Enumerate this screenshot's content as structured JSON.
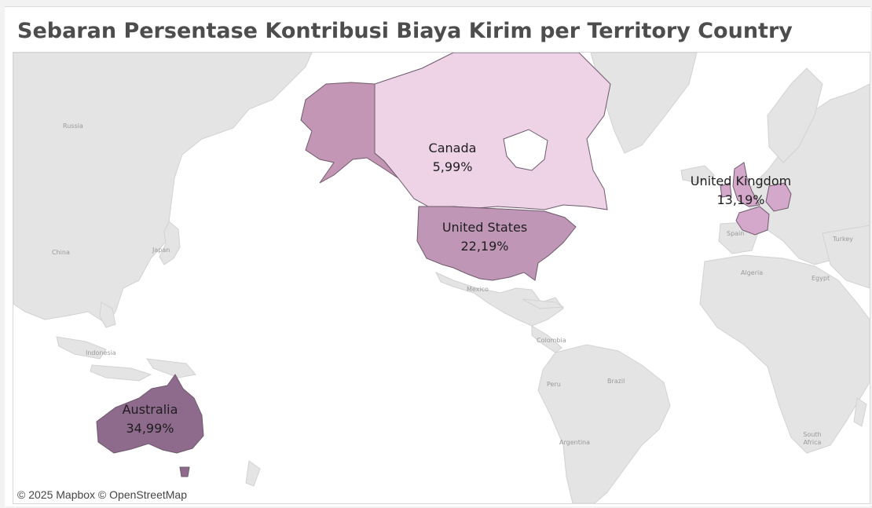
{
  "title": "Sebaran Persentase Kontribusi Biaya Kirim per Territory Country",
  "attribution": "© 2025 Mapbox © OpenStreetMap",
  "colors": {
    "land": "#e4e4e4",
    "land_border": "#cfcfcf",
    "ocean": "#ffffff",
    "mark_lowest": "#eed3e7",
    "mark_highest": "#8e6a8c",
    "mark_border": "#6e5a6c"
  },
  "basemap_labels": [
    "Russia",
    "China",
    "Japan",
    "Indonesia",
    "Mexico",
    "Colombia",
    "Peru",
    "Brazil",
    "Argentina",
    "Spain",
    "Algeria",
    "Egypt",
    "Turkey",
    "South Africa"
  ],
  "territories": [
    {
      "name": "Australia",
      "value": "34,99%",
      "share": 34.99,
      "color": "#8e6a8c"
    },
    {
      "name": "United States",
      "value": "22,19%",
      "share": 22.19,
      "color": "#b98eaf"
    },
    {
      "name": "United Kingdom",
      "value": "13,19%",
      "share": 13.19,
      "color": "#d3a8cb"
    },
    {
      "name": "Canada",
      "value": "5,99%",
      "share": 5.99,
      "color": "#eed3e7"
    }
  ]
}
